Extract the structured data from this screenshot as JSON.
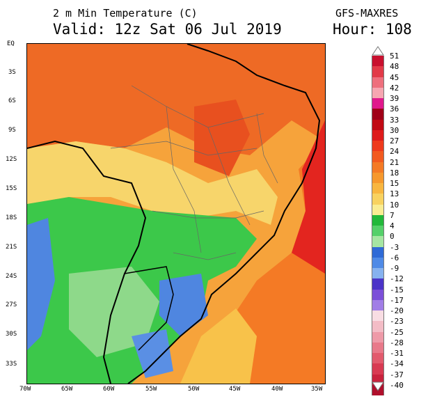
{
  "header": {
    "title_line1": "2 m Min Temperature (C)",
    "title_line2": "Valid: 12z Sat 06 Jul 2019",
    "model": "GFS-MAXRES",
    "hour": "Hour: 108"
  },
  "map": {
    "lat_labels": [
      "EQ",
      "3S",
      "6S",
      "9S",
      "12S",
      "15S",
      "18S",
      "21S",
      "24S",
      "27S",
      "30S",
      "33S"
    ],
    "lon_labels": [
      "70W",
      "65W",
      "60W",
      "55W",
      "50W",
      "45W",
      "40W",
      "35W"
    ],
    "regions": [
      {
        "name": "north",
        "color": "#ee6a25"
      },
      {
        "name": "central",
        "color": "#f6a33b"
      },
      {
        "name": "plateau",
        "color": "#f7d56b"
      },
      {
        "name": "cold-south",
        "color": "#3cc84a"
      },
      {
        "name": "freeze",
        "color": "#4f86e0"
      },
      {
        "name": "coast-warm",
        "color": "#e3251f"
      }
    ]
  },
  "colorbar": {
    "items": [
      {
        "label": "51",
        "color": "#c8102e"
      },
      {
        "label": "48",
        "color": "#e23a48"
      },
      {
        "label": "45",
        "color": "#ee6f7d"
      },
      {
        "label": "42",
        "color": "#f6a6b1"
      },
      {
        "label": "39",
        "color": "#e0188c"
      },
      {
        "label": "36",
        "color": "#a00018"
      },
      {
        "label": "33",
        "color": "#c10a14"
      },
      {
        "label": "30",
        "color": "#de1b1b"
      },
      {
        "label": "27",
        "color": "#ee3a1c"
      },
      {
        "label": "24",
        "color": "#f25a1f"
      },
      {
        "label": "21",
        "color": "#f47a25"
      },
      {
        "label": "18",
        "color": "#f6982d"
      },
      {
        "label": "15",
        "color": "#f8b640"
      },
      {
        "label": "13",
        "color": "#f8d260"
      },
      {
        "label": "10",
        "color": "#faed93"
      },
      {
        "label": "7",
        "color": "#22b83a"
      },
      {
        "label": "4",
        "color": "#55d06a"
      },
      {
        "label": "0",
        "color": "#a6e6a3"
      },
      {
        "label": "-3",
        "color": "#2f6ad6"
      },
      {
        "label": "-6",
        "color": "#4f8ae6"
      },
      {
        "label": "-9",
        "color": "#86b2ef"
      },
      {
        "label": "-12",
        "color": "#4b34c8"
      },
      {
        "label": "-15",
        "color": "#7b4fd8"
      },
      {
        "label": "-17",
        "color": "#a17ee6"
      },
      {
        "label": "-20",
        "color": "#f8dde3"
      },
      {
        "label": "-23",
        "color": "#f3bcc6"
      },
      {
        "label": "-25",
        "color": "#ee9aa8"
      },
      {
        "label": "-28",
        "color": "#e8798a"
      },
      {
        "label": "-31",
        "color": "#e25a6d"
      },
      {
        "label": "-34",
        "color": "#d83a52"
      },
      {
        "label": "-37",
        "color": "#c9223d"
      },
      {
        "label": "-40",
        "color": "#b00f2c"
      }
    ]
  }
}
